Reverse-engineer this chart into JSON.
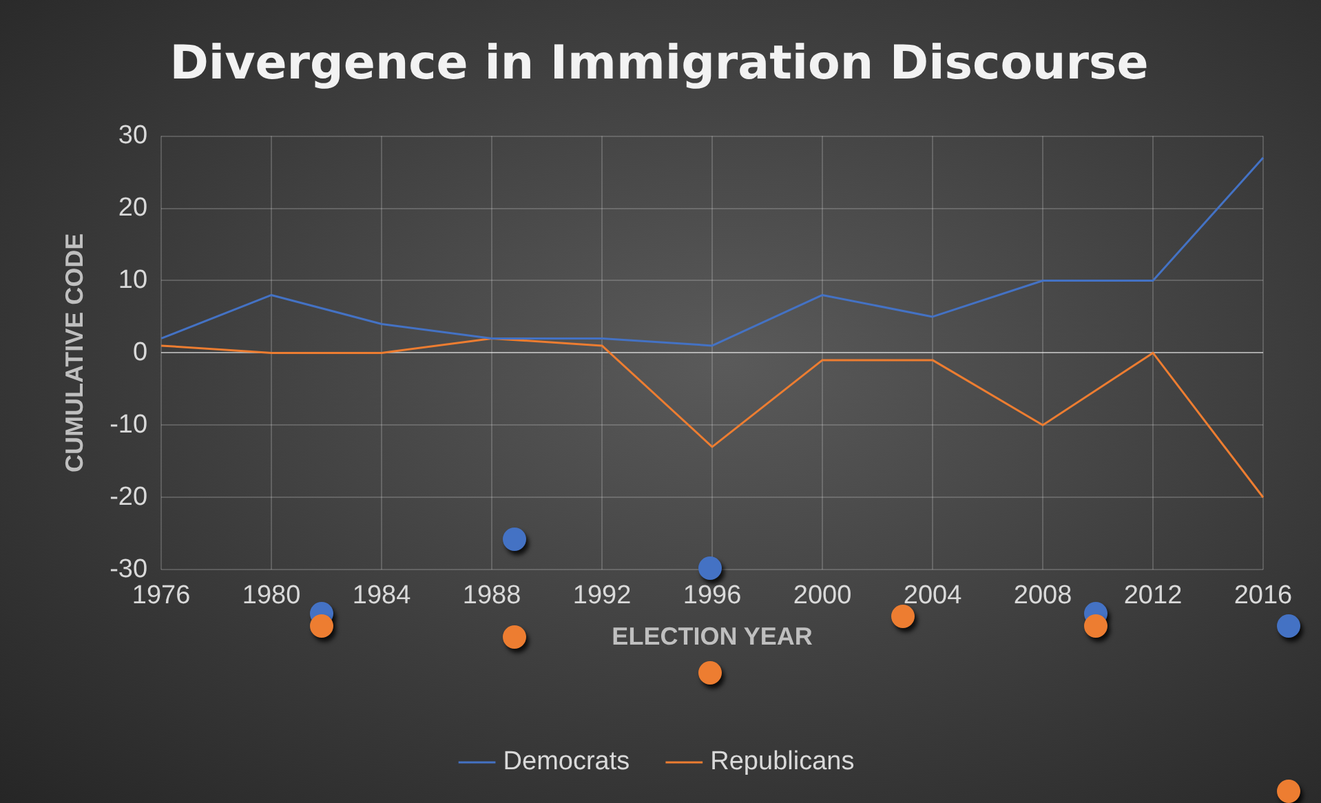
{
  "chart_data": {
    "type": "line",
    "title": "Divergence in Immigration Discourse",
    "xlabel": "ELECTION YEAR",
    "ylabel": "CUMULATIVE CODE",
    "categories": [
      "1976",
      "1980",
      "1984",
      "1988",
      "1992",
      "1996",
      "2000",
      "2004",
      "2008",
      "2012",
      "2016"
    ],
    "series": [
      {
        "name": "Democrats",
        "color": "#4472c4",
        "values": [
          2,
          8,
          4,
          2,
          2,
          1,
          8,
          5,
          10,
          10,
          27
        ]
      },
      {
        "name": "Republicans",
        "color": "#ed7d31",
        "values": [
          1,
          0,
          0,
          2,
          1,
          -13,
          -1,
          -1,
          -10,
          0,
          -20
        ]
      }
    ],
    "ylim": [
      -30,
      30
    ],
    "yticks": [
      -30,
      -20,
      -10,
      0,
      10,
      20,
      30
    ],
    "grid": true,
    "legend": "bottom",
    "marker": "none",
    "line_style": "solid"
  }
}
